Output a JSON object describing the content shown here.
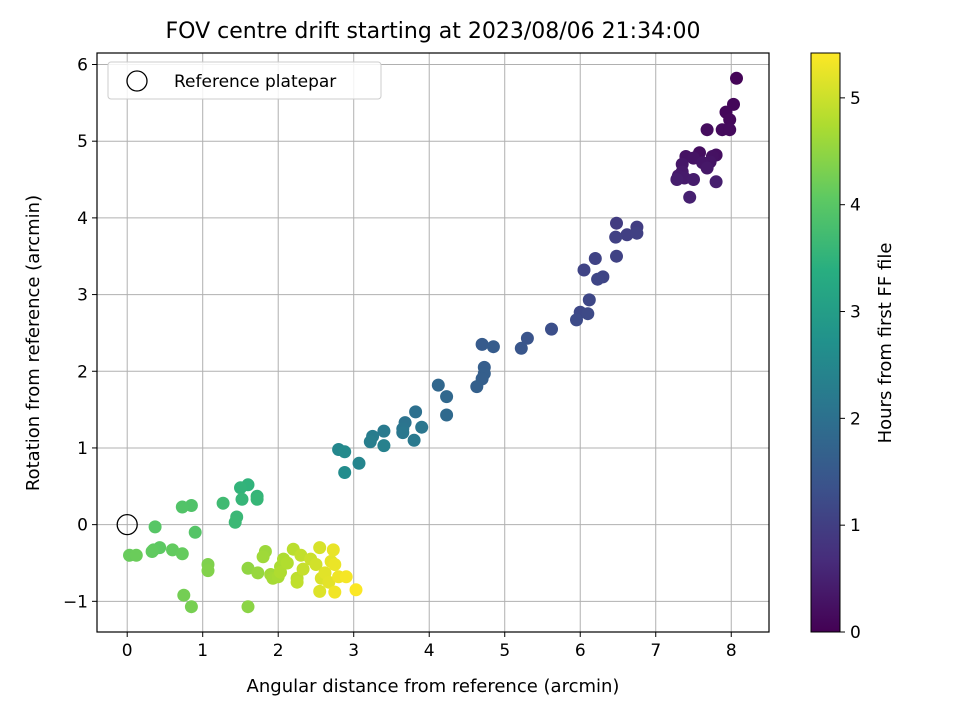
{
  "chart_data": {
    "type": "scatter",
    "title": "FOV centre drift starting at 2023/08/06 21:34:00",
    "xlabel": "Angular distance from reference (arcmin)",
    "ylabel": "Rotation from reference (arcmin)",
    "xlim": [
      -0.4,
      8.5
    ],
    "ylim": [
      -1.4,
      6.15
    ],
    "xticks": [
      0,
      1,
      2,
      3,
      4,
      5,
      6,
      7,
      8
    ],
    "yticks": [
      -1,
      0,
      1,
      2,
      3,
      4,
      5,
      6
    ],
    "grid": true,
    "legend": {
      "placement": "upper-left",
      "entries": [
        "Reference platepar"
      ]
    },
    "colorbar": {
      "label": "Hours from first FF file",
      "colormap": "viridis",
      "range": [
        0,
        5.42
      ],
      "ticks": [
        0,
        1,
        2,
        3,
        4,
        5
      ]
    },
    "reference_point": {
      "x": 0,
      "y": 0
    },
    "points": [
      {
        "x": 8.07,
        "y": 5.82,
        "c": 0.05
      },
      {
        "x": 8.03,
        "y": 5.48,
        "c": 0.08
      },
      {
        "x": 7.93,
        "y": 5.38,
        "c": 0.1
      },
      {
        "x": 7.98,
        "y": 5.28,
        "c": 0.12
      },
      {
        "x": 7.88,
        "y": 5.15,
        "c": 0.15
      },
      {
        "x": 7.98,
        "y": 5.15,
        "c": 0.16
      },
      {
        "x": 7.68,
        "y": 5.15,
        "c": 0.18
      },
      {
        "x": 7.58,
        "y": 4.85,
        "c": 0.2
      },
      {
        "x": 7.8,
        "y": 4.82,
        "c": 0.22
      },
      {
        "x": 7.75,
        "y": 4.8,
        "c": 0.24
      },
      {
        "x": 7.4,
        "y": 4.8,
        "c": 0.26
      },
      {
        "x": 7.5,
        "y": 4.78,
        "c": 0.28
      },
      {
        "x": 7.72,
        "y": 4.73,
        "c": 0.3
      },
      {
        "x": 7.62,
        "y": 4.72,
        "c": 0.31
      },
      {
        "x": 7.35,
        "y": 4.7,
        "c": 0.33
      },
      {
        "x": 7.68,
        "y": 4.65,
        "c": 0.35
      },
      {
        "x": 7.35,
        "y": 4.6,
        "c": 0.37
      },
      {
        "x": 7.3,
        "y": 4.55,
        "c": 0.39
      },
      {
        "x": 7.38,
        "y": 4.52,
        "c": 0.4
      },
      {
        "x": 7.5,
        "y": 4.5,
        "c": 0.42
      },
      {
        "x": 7.28,
        "y": 4.5,
        "c": 0.44
      },
      {
        "x": 7.8,
        "y": 4.47,
        "c": 0.46
      },
      {
        "x": 7.45,
        "y": 4.27,
        "c": 0.48
      },
      {
        "x": 6.48,
        "y": 3.93,
        "c": 0.95
      },
      {
        "x": 6.75,
        "y": 3.88,
        "c": 0.97
      },
      {
        "x": 6.62,
        "y": 3.78,
        "c": 1.0
      },
      {
        "x": 6.75,
        "y": 3.8,
        "c": 1.02
      },
      {
        "x": 6.47,
        "y": 3.75,
        "c": 1.04
      },
      {
        "x": 6.48,
        "y": 3.5,
        "c": 1.06
      },
      {
        "x": 6.2,
        "y": 3.47,
        "c": 1.08
      },
      {
        "x": 6.05,
        "y": 3.32,
        "c": 1.1
      },
      {
        "x": 6.3,
        "y": 3.23,
        "c": 1.12
      },
      {
        "x": 6.23,
        "y": 3.2,
        "c": 1.14
      },
      {
        "x": 6.12,
        "y": 2.93,
        "c": 1.16
      },
      {
        "x": 6.0,
        "y": 2.77,
        "c": 1.18
      },
      {
        "x": 6.1,
        "y": 2.75,
        "c": 1.2
      },
      {
        "x": 5.95,
        "y": 2.67,
        "c": 1.22
      },
      {
        "x": 5.62,
        "y": 2.55,
        "c": 1.3
      },
      {
        "x": 5.3,
        "y": 2.43,
        "c": 1.4
      },
      {
        "x": 5.22,
        "y": 2.3,
        "c": 1.45
      },
      {
        "x": 4.7,
        "y": 2.35,
        "c": 1.55
      },
      {
        "x": 4.85,
        "y": 2.32,
        "c": 1.57
      },
      {
        "x": 4.73,
        "y": 2.05,
        "c": 1.6
      },
      {
        "x": 4.73,
        "y": 1.97,
        "c": 1.62
      },
      {
        "x": 4.7,
        "y": 1.9,
        "c": 1.64
      },
      {
        "x": 4.63,
        "y": 1.8,
        "c": 1.66
      },
      {
        "x": 4.12,
        "y": 1.82,
        "c": 1.8
      },
      {
        "x": 4.23,
        "y": 1.67,
        "c": 1.82
      },
      {
        "x": 4.23,
        "y": 1.43,
        "c": 1.85
      },
      {
        "x": 3.82,
        "y": 1.47,
        "c": 2.0
      },
      {
        "x": 3.68,
        "y": 1.33,
        "c": 2.05
      },
      {
        "x": 3.65,
        "y": 1.25,
        "c": 2.1
      },
      {
        "x": 3.9,
        "y": 1.27,
        "c": 2.12
      },
      {
        "x": 3.65,
        "y": 1.2,
        "c": 2.15
      },
      {
        "x": 3.4,
        "y": 1.22,
        "c": 2.2
      },
      {
        "x": 3.25,
        "y": 1.15,
        "c": 2.25
      },
      {
        "x": 3.22,
        "y": 1.08,
        "c": 2.3
      },
      {
        "x": 3.4,
        "y": 1.03,
        "c": 2.35
      },
      {
        "x": 3.8,
        "y": 1.1,
        "c": 2.18
      },
      {
        "x": 2.8,
        "y": 0.98,
        "c": 2.5
      },
      {
        "x": 2.88,
        "y": 0.95,
        "c": 2.55
      },
      {
        "x": 3.07,
        "y": 0.8,
        "c": 2.45
      },
      {
        "x": 2.88,
        "y": 0.68,
        "c": 2.6
      },
      {
        "x": 1.6,
        "y": 0.52,
        "c": 3.5
      },
      {
        "x": 1.5,
        "y": 0.48,
        "c": 3.52
      },
      {
        "x": 1.72,
        "y": 0.37,
        "c": 3.55
      },
      {
        "x": 1.52,
        "y": 0.33,
        "c": 3.57
      },
      {
        "x": 1.72,
        "y": 0.33,
        "c": 3.58
      },
      {
        "x": 1.27,
        "y": 0.28,
        "c": 3.7
      },
      {
        "x": 0.85,
        "y": 0.25,
        "c": 3.9
      },
      {
        "x": 0.73,
        "y": 0.23,
        "c": 3.92
      },
      {
        "x": 1.45,
        "y": 0.1,
        "c": 3.62
      },
      {
        "x": 1.43,
        "y": 0.03,
        "c": 3.64
      },
      {
        "x": 0.37,
        "y": -0.03,
        "c": 3.98
      },
      {
        "x": 0.9,
        "y": -0.1,
        "c": 3.95
      },
      {
        "x": 0.43,
        "y": -0.3,
        "c": 4.05
      },
      {
        "x": 0.35,
        "y": -0.33,
        "c": 4.07
      },
      {
        "x": 0.6,
        "y": -0.33,
        "c": 4.1
      },
      {
        "x": 0.73,
        "y": -0.38,
        "c": 4.12
      },
      {
        "x": 0.03,
        "y": -0.4,
        "c": 4.15
      },
      {
        "x": 0.12,
        "y": -0.4,
        "c": 4.17
      },
      {
        "x": 0.33,
        "y": -0.35,
        "c": 4.09
      },
      {
        "x": 1.07,
        "y": -0.52,
        "c": 4.35
      },
      {
        "x": 1.07,
        "y": -0.6,
        "c": 4.37
      },
      {
        "x": 0.75,
        "y": -0.92,
        "c": 4.25
      },
      {
        "x": 0.85,
        "y": -1.07,
        "c": 4.28
      },
      {
        "x": 1.6,
        "y": -1.07,
        "c": 4.45
      },
      {
        "x": 1.6,
        "y": -0.57,
        "c": 4.5
      },
      {
        "x": 1.73,
        "y": -0.63,
        "c": 4.55
      },
      {
        "x": 1.83,
        "y": -0.35,
        "c": 4.6
      },
      {
        "x": 1.8,
        "y": -0.42,
        "c": 4.62
      },
      {
        "x": 1.9,
        "y": -0.65,
        "c": 4.65
      },
      {
        "x": 1.93,
        "y": -0.7,
        "c": 4.67
      },
      {
        "x": 2.0,
        "y": -0.68,
        "c": 4.7
      },
      {
        "x": 2.03,
        "y": -0.55,
        "c": 4.72
      },
      {
        "x": 2.07,
        "y": -0.45,
        "c": 4.74
      },
      {
        "x": 2.03,
        "y": -0.62,
        "c": 4.76
      },
      {
        "x": 2.12,
        "y": -0.5,
        "c": 4.78
      },
      {
        "x": 2.2,
        "y": -0.32,
        "c": 4.85
      },
      {
        "x": 2.25,
        "y": -0.7,
        "c": 4.88
      },
      {
        "x": 2.25,
        "y": -0.75,
        "c": 4.9
      },
      {
        "x": 2.3,
        "y": -0.4,
        "c": 4.92
      },
      {
        "x": 2.33,
        "y": -0.58,
        "c": 4.95
      },
      {
        "x": 2.43,
        "y": -0.45,
        "c": 5.0
      },
      {
        "x": 2.5,
        "y": -0.52,
        "c": 5.05
      },
      {
        "x": 2.55,
        "y": -0.3,
        "c": 5.1
      },
      {
        "x": 2.57,
        "y": -0.7,
        "c": 5.12
      },
      {
        "x": 2.55,
        "y": -0.87,
        "c": 5.15
      },
      {
        "x": 2.62,
        "y": -0.63,
        "c": 5.18
      },
      {
        "x": 2.67,
        "y": -0.75,
        "c": 5.2
      },
      {
        "x": 2.7,
        "y": -0.48,
        "c": 5.22
      },
      {
        "x": 2.73,
        "y": -0.33,
        "c": 5.25
      },
      {
        "x": 2.75,
        "y": -0.52,
        "c": 5.27
      },
      {
        "x": 2.8,
        "y": -0.68,
        "c": 5.3
      },
      {
        "x": 2.75,
        "y": -0.88,
        "c": 5.32
      },
      {
        "x": 2.9,
        "y": -0.68,
        "c": 5.35
      },
      {
        "x": 3.03,
        "y": -0.85,
        "c": 5.4
      }
    ]
  }
}
